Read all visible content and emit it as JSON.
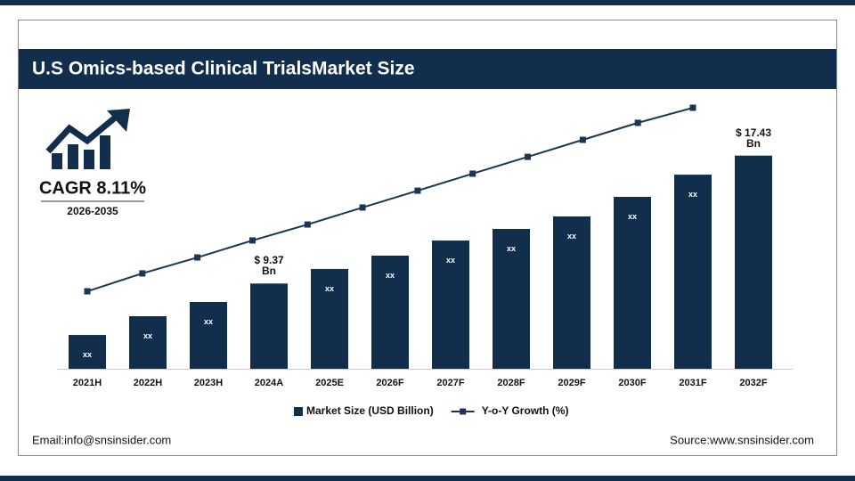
{
  "header": {
    "title": "U.S Omics-based Clinical TrialsMarket Size"
  },
  "cagr": {
    "label": "CAGR 8.11%",
    "period": "2026-2035"
  },
  "chart_data": {
    "type": "bar",
    "categories": [
      "2021H",
      "2022H",
      "2023H",
      "2024A",
      "2025E",
      "2026F",
      "2027F",
      "2028F",
      "2029F",
      "2030F",
      "2031F",
      "2032F"
    ],
    "series": [
      {
        "name": "Market Size (USD Billion)",
        "color": "#112e4d",
        "type": "bar",
        "values": [
          6.13,
          7.31,
          8.21,
          9.37,
          10.29,
          11.13,
          12.08,
          12.81,
          13.6,
          14.83,
          16.23,
          17.43
        ],
        "value_labels": [
          "xx",
          "xx",
          "xx",
          "$ 9.37 Bn",
          "xx",
          "xx",
          "xx",
          "xx",
          "xx",
          "xx",
          "xx",
          "$ 17.43 Bn"
        ]
      },
      {
        "name": "Y-o-Y Growth (%)",
        "color": "#1b3553",
        "type": "line",
        "axis": "y2",
        "values": [
          3.55,
          4.37,
          5.1,
          5.88,
          6.61,
          7.39,
          8.16,
          8.94,
          9.71,
          10.49,
          11.27,
          11.96
        ]
      }
    ],
    "ylim": [
      4,
      20.5
    ],
    "y2lim": [
      0,
      12
    ],
    "legend": "bottom"
  },
  "footer": {
    "email": "Email:info@snsinsider.com",
    "source": "Source:www.snsinsider.com"
  }
}
